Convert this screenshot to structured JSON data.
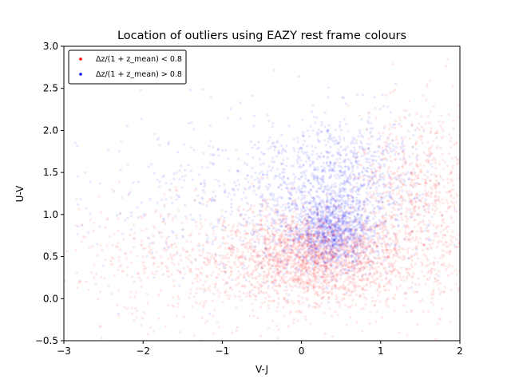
{
  "chart_data": {
    "type": "scatter",
    "title": "Location of outliers using EAZY rest frame colours",
    "xlabel": "V-J",
    "ylabel": "U-V",
    "xlim": [
      -3,
      2
    ],
    "ylim": [
      -0.5,
      3.0
    ],
    "x_ticks": [
      -3,
      -2,
      -1,
      0,
      1,
      2
    ],
    "x_tick_labels": [
      "−3",
      "−2",
      "−1",
      "0",
      "1",
      "2"
    ],
    "y_ticks": [
      -0.5,
      0.0,
      0.5,
      1.0,
      1.5,
      2.0,
      2.5,
      3.0
    ],
    "y_tick_labels": [
      "−0.5",
      "0.0",
      "0.5",
      "1.0",
      "1.5",
      "2.0",
      "2.5",
      "3.0"
    ],
    "grid": false,
    "legend_position": "top-left",
    "series": [
      {
        "name": "Δz/(1 + z_mean) < 0.8",
        "color": "#ff0000",
        "clusters": [
          {
            "cx": 0.15,
            "cy": 0.5,
            "sx": 0.55,
            "sy": 0.25,
            "weight": 0.45
          },
          {
            "cx": 0.1,
            "cy": 0.45,
            "sx": 1.2,
            "sy": 0.4,
            "weight": 0.3
          },
          {
            "cx": 1.3,
            "cy": 1.3,
            "sx": 0.35,
            "sy": 0.45,
            "weight": 0.13
          },
          {
            "cx": 1.8,
            "cy": 1.2,
            "sx": 0.25,
            "sy": 0.6,
            "weight": 0.07
          },
          {
            "cx": -2.0,
            "cy": 0.4,
            "sx": 0.6,
            "sy": 0.4,
            "weight": 0.05
          }
        ]
      },
      {
        "name": "Δz/(1 + z_mean) > 0.8",
        "color": "#0000ff",
        "clusters": [
          {
            "cx": 0.4,
            "cy": 0.8,
            "sx": 0.25,
            "sy": 0.2,
            "weight": 0.35
          },
          {
            "cx": 0.3,
            "cy": 1.1,
            "sx": 0.6,
            "sy": 0.4,
            "weight": 0.35
          },
          {
            "cx": 0.6,
            "cy": 1.6,
            "sx": 0.4,
            "sy": 0.35,
            "weight": 0.15
          },
          {
            "cx": -1.0,
            "cy": 1.2,
            "sx": 1.0,
            "sy": 0.5,
            "weight": 0.15
          }
        ]
      }
    ]
  }
}
